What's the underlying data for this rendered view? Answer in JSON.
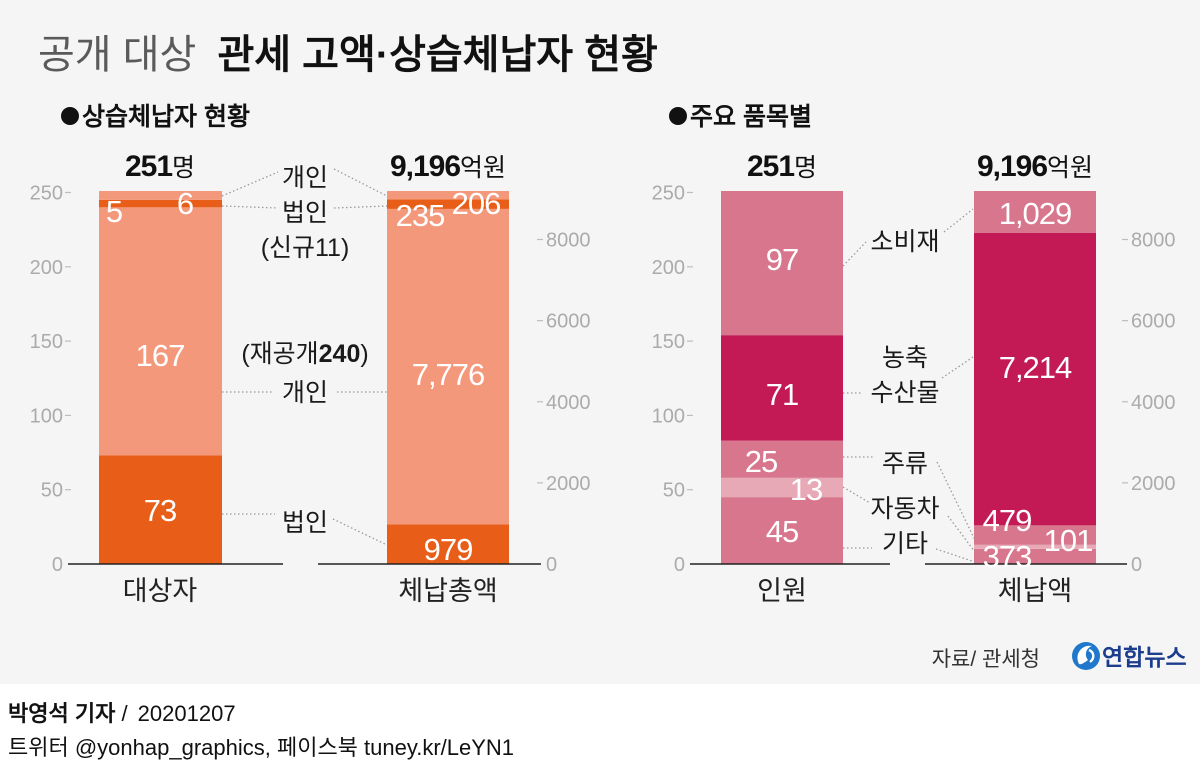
{
  "title": {
    "light": "공개 대상",
    "bold": "관세 고액·상습체납자 현황"
  },
  "chart_data": [
    {
      "type": "bar",
      "stacked": true,
      "title": "상습체납자 현황",
      "categories": [
        "대상자",
        "체납총액"
      ],
      "totals": [
        {
          "number": "251",
          "unit": "명"
        },
        {
          "number": "9,196",
          "unit": "억원"
        }
      ],
      "series": [
        {
          "name": "법인 (재공개)",
          "color": "#e85d17",
          "values": [
            73,
            979
          ],
          "labels": [
            "73",
            "979"
          ]
        },
        {
          "name": "개인 (재공개)",
          "color": "#f4987b",
          "values": [
            167,
            7776
          ],
          "labels": [
            "167",
            "7,776"
          ]
        },
        {
          "name": "법인 (신규)",
          "color": "#e85d17",
          "values": [
            5,
            235
          ],
          "labels": [
            "5",
            "235"
          ]
        },
        {
          "name": "개인 (신규)",
          "color": "#f4987b",
          "values": [
            6,
            206
          ],
          "labels": [
            "6",
            "206"
          ]
        }
      ],
      "annotations": {
        "new_individual": "개인",
        "new_corporate": "법인",
        "new_group": "(신규11)",
        "republished_group_prefix": "(재공개",
        "republished_group_count": "240",
        "republished_group_suffix": ")",
        "republished_individual": "개인",
        "republished_corporate": "법인"
      },
      "y_left": {
        "unit": "명",
        "lim": [
          0,
          251
        ],
        "ticks": [
          0,
          50,
          100,
          150,
          200,
          250
        ]
      },
      "y_right": {
        "unit": "억원",
        "lim": [
          0,
          9196
        ],
        "ticks": [
          0,
          2000,
          4000,
          6000,
          8000
        ]
      },
      "grid": false
    },
    {
      "type": "bar",
      "stacked": true,
      "title": "주요 품목별",
      "categories": [
        "인원",
        "체납액"
      ],
      "totals": [
        {
          "number": "251",
          "unit": "명"
        },
        {
          "number": "9,196",
          "unit": "억원"
        }
      ],
      "series": [
        {
          "name": "기타",
          "color": "#d7768c",
          "values": [
            45,
            373
          ],
          "labels": [
            "45",
            "373"
          ]
        },
        {
          "name": "자동차",
          "color": "#e8a9b7",
          "values": [
            13,
            101
          ],
          "labels": [
            "13",
            "101"
          ]
        },
        {
          "name": "주류",
          "color": "#d7768c",
          "values": [
            25,
            479
          ],
          "labels": [
            "25",
            "479"
          ]
        },
        {
          "name": "농축수산물",
          "color": "#c31a56",
          "values": [
            71,
            7214
          ],
          "labels": [
            "71",
            "7,214"
          ]
        },
        {
          "name": "소비재",
          "color": "#d7768c",
          "values": [
            97,
            1029
          ],
          "labels": [
            "97",
            "1,029"
          ]
        }
      ],
      "annotations": {
        "consumer_goods": "소비재",
        "agri_line1": "농축",
        "agri_line2": "수산물",
        "liquor": "주류",
        "automobile": "자동차",
        "other": "기타"
      },
      "y_left": {
        "unit": "명",
        "lim": [
          0,
          251
        ],
        "ticks": [
          0,
          50,
          100,
          150,
          200,
          250
        ]
      },
      "y_right": {
        "unit": "억원",
        "lim": [
          0,
          9196
        ],
        "ticks": [
          0,
          2000,
          4000,
          6000,
          8000
        ]
      },
      "grid": false
    }
  ],
  "source": "자료/ 관세청",
  "brand": {
    "name": "연합뉴스",
    "color": "#1c3c8e",
    "icon": "yonhap-logo-icon"
  },
  "credits": {
    "reporter": "박영석 기자",
    "separator": " / ",
    "date": "20201207",
    "social": "트위터 @yonhap_graphics, 페이스북 tuney.kr/LeYN1"
  }
}
